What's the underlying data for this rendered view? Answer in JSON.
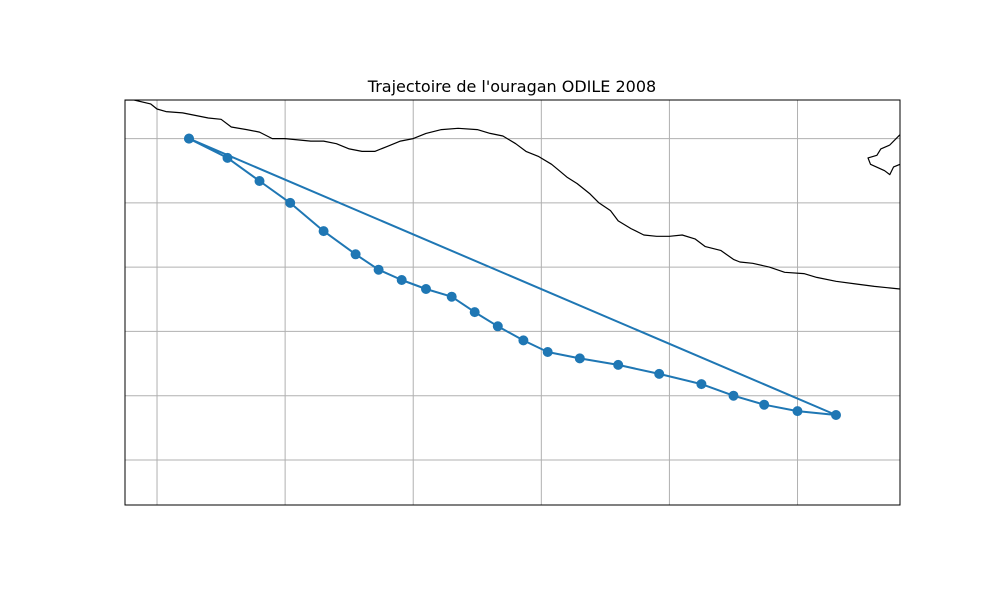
{
  "map": {
    "title": "Trajectoire de l'ouragan ODILE 2008",
    "track_color": "#1f77b4",
    "grid_color": "#b0b0b0",
    "coastline_color": "#000000",
    "grid": true,
    "extent": {
      "lon": [
        -102.25,
        -96.2
      ],
      "lat": [
        12.65,
        15.8
      ]
    },
    "gridlines": {
      "lon": [
        -102,
        -101,
        -100,
        -99,
        -98,
        -97
      ],
      "lat": [
        13,
        13.5,
        14,
        14.5,
        15,
        15.5
      ]
    },
    "track": [
      {
        "lon": -101.75,
        "lat": 15.5
      },
      {
        "lon": -101.45,
        "lat": 15.35
      },
      {
        "lon": -101.2,
        "lat": 15.17
      },
      {
        "lon": -100.96,
        "lat": 15.0
      },
      {
        "lon": -100.7,
        "lat": 14.78
      },
      {
        "lon": -100.45,
        "lat": 14.6
      },
      {
        "lon": -100.27,
        "lat": 14.48
      },
      {
        "lon": -100.09,
        "lat": 14.4
      },
      {
        "lon": -99.9,
        "lat": 14.33
      },
      {
        "lon": -99.7,
        "lat": 14.27
      },
      {
        "lon": -99.52,
        "lat": 14.15
      },
      {
        "lon": -99.34,
        "lat": 14.04
      },
      {
        "lon": -99.14,
        "lat": 13.93
      },
      {
        "lon": -98.95,
        "lat": 13.84
      },
      {
        "lon": -98.7,
        "lat": 13.79
      },
      {
        "lon": -98.4,
        "lat": 13.74
      },
      {
        "lon": -98.08,
        "lat": 13.67
      },
      {
        "lon": -97.75,
        "lat": 13.59
      },
      {
        "lon": -97.5,
        "lat": 13.5
      },
      {
        "lon": -97.26,
        "lat": 13.43
      },
      {
        "lon": -97.0,
        "lat": 13.38
      },
      {
        "lon": -96.7,
        "lat": 13.35
      },
      {
        "lon": -101.75,
        "lat": 15.5
      }
    ],
    "coastline": [
      {
        "lon": -102.25,
        "lat": 15.8
      },
      {
        "lon": -102.18,
        "lat": 15.8
      },
      {
        "lon": -102.05,
        "lat": 15.77
      },
      {
        "lon": -102.0,
        "lat": 15.73
      },
      {
        "lon": -101.93,
        "lat": 15.71
      },
      {
        "lon": -101.8,
        "lat": 15.7
      },
      {
        "lon": -101.6,
        "lat": 15.66
      },
      {
        "lon": -101.5,
        "lat": 15.65
      },
      {
        "lon": -101.42,
        "lat": 15.59
      },
      {
        "lon": -101.3,
        "lat": 15.57
      },
      {
        "lon": -101.2,
        "lat": 15.55
      },
      {
        "lon": -101.1,
        "lat": 15.5
      },
      {
        "lon": -101.0,
        "lat": 15.5
      },
      {
        "lon": -100.9,
        "lat": 15.49
      },
      {
        "lon": -100.8,
        "lat": 15.48
      },
      {
        "lon": -100.7,
        "lat": 15.48
      },
      {
        "lon": -100.6,
        "lat": 15.46
      },
      {
        "lon": -100.5,
        "lat": 15.42
      },
      {
        "lon": -100.4,
        "lat": 15.4
      },
      {
        "lon": -100.3,
        "lat": 15.4
      },
      {
        "lon": -100.2,
        "lat": 15.44
      },
      {
        "lon": -100.1,
        "lat": 15.48
      },
      {
        "lon": -100.0,
        "lat": 15.5
      },
      {
        "lon": -99.9,
        "lat": 15.54
      },
      {
        "lon": -99.78,
        "lat": 15.57
      },
      {
        "lon": -99.65,
        "lat": 15.58
      },
      {
        "lon": -99.5,
        "lat": 15.57
      },
      {
        "lon": -99.4,
        "lat": 15.54
      },
      {
        "lon": -99.3,
        "lat": 15.52
      },
      {
        "lon": -99.2,
        "lat": 15.46
      },
      {
        "lon": -99.12,
        "lat": 15.4
      },
      {
        "lon": -99.02,
        "lat": 15.36
      },
      {
        "lon": -98.92,
        "lat": 15.3
      },
      {
        "lon": -98.86,
        "lat": 15.25
      },
      {
        "lon": -98.8,
        "lat": 15.2
      },
      {
        "lon": -98.72,
        "lat": 15.15
      },
      {
        "lon": -98.62,
        "lat": 15.07
      },
      {
        "lon": -98.55,
        "lat": 15.0
      },
      {
        "lon": -98.46,
        "lat": 14.94
      },
      {
        "lon": -98.4,
        "lat": 14.86
      },
      {
        "lon": -98.3,
        "lat": 14.8
      },
      {
        "lon": -98.2,
        "lat": 14.75
      },
      {
        "lon": -98.1,
        "lat": 14.74
      },
      {
        "lon": -98.0,
        "lat": 14.74
      },
      {
        "lon": -97.9,
        "lat": 14.75
      },
      {
        "lon": -97.8,
        "lat": 14.72
      },
      {
        "lon": -97.72,
        "lat": 14.66
      },
      {
        "lon": -97.6,
        "lat": 14.63
      },
      {
        "lon": -97.5,
        "lat": 14.56
      },
      {
        "lon": -97.45,
        "lat": 14.54
      },
      {
        "lon": -97.35,
        "lat": 14.53
      },
      {
        "lon": -97.22,
        "lat": 14.5
      },
      {
        "lon": -97.1,
        "lat": 14.46
      },
      {
        "lon": -96.95,
        "lat": 14.45
      },
      {
        "lon": -96.85,
        "lat": 14.42
      },
      {
        "lon": -96.7,
        "lat": 14.39
      },
      {
        "lon": -96.55,
        "lat": 14.37
      },
      {
        "lon": -96.4,
        "lat": 14.35
      },
      {
        "lon": -96.3,
        "lat": 14.34
      },
      {
        "lon": -96.2,
        "lat": 14.33
      }
    ],
    "coastline_east": [
      {
        "lon": -96.2,
        "lat": 15.53
      },
      {
        "lon": -96.28,
        "lat": 15.45
      },
      {
        "lon": -96.35,
        "lat": 15.42
      },
      {
        "lon": -96.38,
        "lat": 15.37
      },
      {
        "lon": -96.45,
        "lat": 15.35
      },
      {
        "lon": -96.43,
        "lat": 15.3
      },
      {
        "lon": -96.32,
        "lat": 15.25
      },
      {
        "lon": -96.28,
        "lat": 15.22
      },
      {
        "lon": -96.25,
        "lat": 15.28
      },
      {
        "lon": -96.2,
        "lat": 15.3
      }
    ]
  }
}
